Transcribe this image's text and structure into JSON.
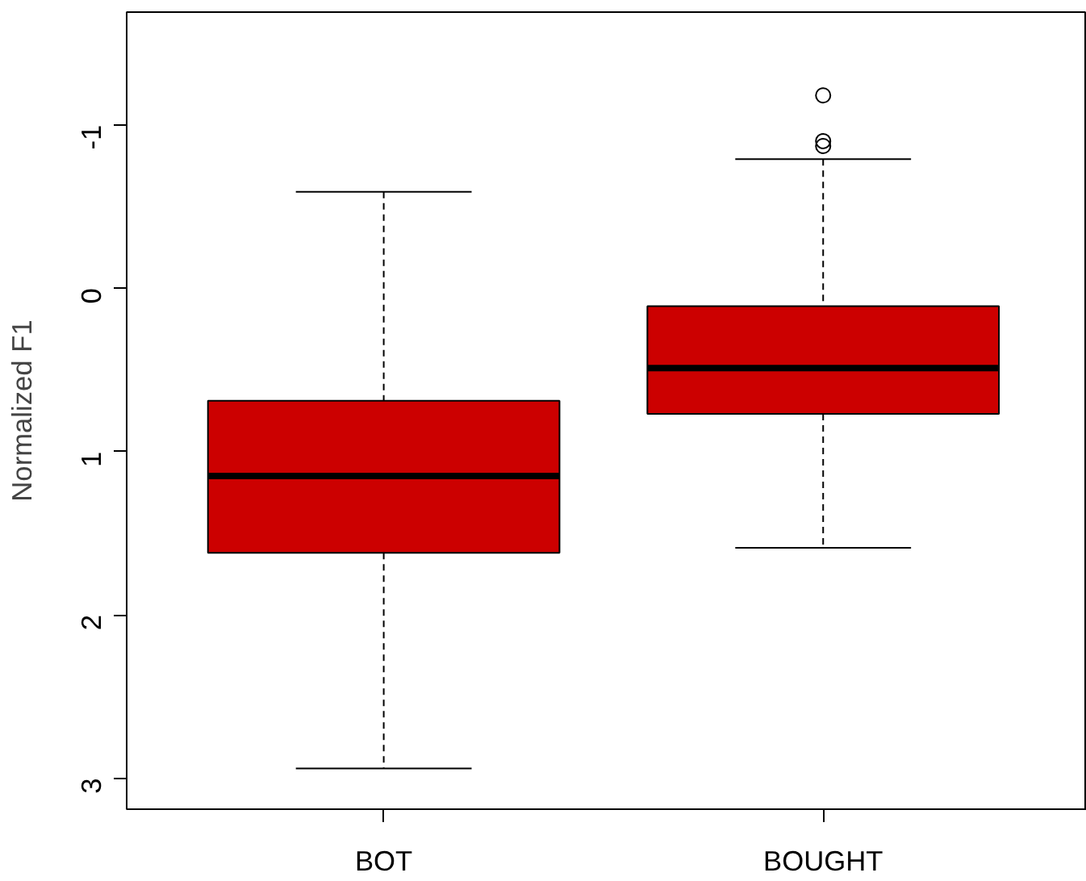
{
  "chart_data": {
    "type": "box",
    "ylabel": "Normalized F1",
    "categories": [
      "BOT",
      "BOUGHT"
    ],
    "color": "#cc0000",
    "boxes": [
      {
        "low": -0.59,
        "q1": 0.69,
        "median": 1.15,
        "q3": 1.62,
        "high": 2.94
      },
      {
        "low": -0.79,
        "q1": 0.11,
        "median": 0.49,
        "q3": 0.77,
        "high": 1.59,
        "outliers": [
          -1.18,
          -0.9,
          -0.87
        ]
      }
    ],
    "ylim": [
      3.19,
      -1.69
    ],
    "yticks": [
      -1,
      0,
      1,
      2,
      3
    ],
    "grid": false
  }
}
